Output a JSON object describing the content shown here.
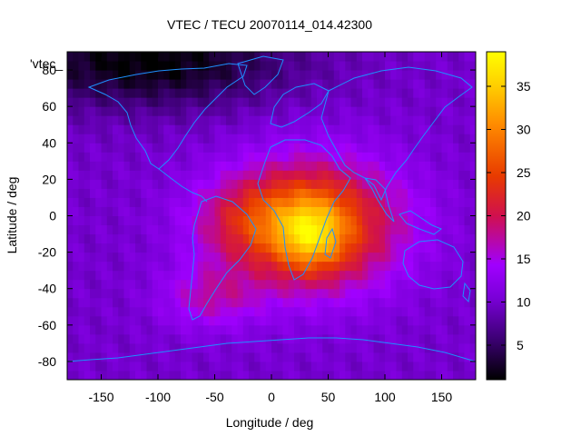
{
  "chart_data": {
    "type": "heatmap",
    "title": "VTEC / TECU 20070114_014.42300",
    "xlabel": "Longitude / deg",
    "ylabel": "Latitude / deg",
    "xlim": [
      -180,
      180
    ],
    "ylim": [
      -90,
      90
    ],
    "x_ticks": [
      -150,
      -100,
      -50,
      0,
      50,
      100,
      150
    ],
    "y_ticks": [
      -80,
      -60,
      -40,
      -20,
      0,
      20,
      40,
      60,
      80
    ],
    "x_tick_labels": [
      "-150",
      "-100",
      "-50",
      "0",
      "50",
      "100",
      "150"
    ],
    "y_tick_labels": [
      "-80",
      "-60",
      "-40",
      "-20",
      "0",
      "20",
      "40",
      "60",
      "80"
    ],
    "colorbar": {
      "min": 1,
      "max": 39,
      "ticks": [
        5,
        10,
        15,
        20,
        25,
        30,
        35
      ],
      "tick_labels": [
        "5",
        "10",
        "15",
        "20",
        "25",
        "30",
        "35"
      ],
      "palette": [
        "#000000",
        "#3a0070",
        "#7a00d8",
        "#a000ff",
        "#d0104e",
        "#e83a00",
        "#ff8c00",
        "#ffd000",
        "#ffff00"
      ]
    },
    "series_label": "'vtec_",
    "field": {
      "background_vtec": 10,
      "peak": {
        "lon": 35,
        "lat": -10,
        "vtec": 37
      },
      "equatorial_anomaly_center": {
        "lon": 40,
        "lat": -5
      },
      "description_points": [
        {
          "lon": 35,
          "lat": -10,
          "vtec": 37
        },
        {
          "lon": 0,
          "lat": 10,
          "vtec": 28
        },
        {
          "lon": 60,
          "lat": 15,
          "vtec": 25
        },
        {
          "lon": -30,
          "lat": 0,
          "vtec": 20
        },
        {
          "lon": -60,
          "lat": -45,
          "vtec": 18
        },
        {
          "lon": 120,
          "lat": 0,
          "vtec": 13
        },
        {
          "lon": -150,
          "lat": 20,
          "vtec": 10
        },
        {
          "lon": -120,
          "lat": 80,
          "vtec": 2
        },
        {
          "lon": 0,
          "lat": -85,
          "vtec": 9
        }
      ]
    },
    "overlay": "coastlines"
  }
}
